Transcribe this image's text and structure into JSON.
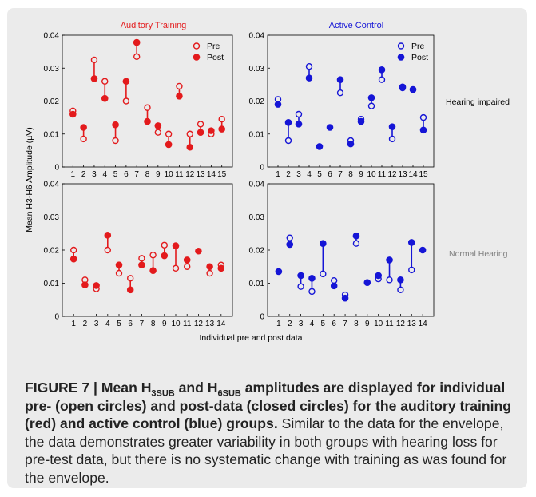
{
  "figure": {
    "ylabel": "Mean H3-H6 Amplitude (µV)",
    "xlabel": "Individual pre and post data",
    "titles": {
      "auditory": "Auditory Training",
      "active": "Active Control"
    },
    "row_labels": {
      "hi": "Hearing impaired",
      "nh": "Normal Hearing"
    },
    "legend": {
      "pre": "Pre",
      "post": "Post"
    },
    "colors": {
      "red": "#e31a1c",
      "blue": "#1515d6",
      "hi_label": "#000000",
      "nh_label": "#808080"
    }
  },
  "chart_data": [
    {
      "type": "scatter",
      "title": "Auditory Training",
      "row": "Hearing impaired",
      "color": "#e31a1c",
      "ylim": [
        0,
        0.04
      ],
      "yticks": [
        "0",
        "0.01",
        "0.02",
        "0.03",
        "0.04"
      ],
      "categories": [
        "1",
        "2",
        "3",
        "4",
        "5",
        "6",
        "7",
        "8",
        "9",
        "10",
        "11",
        "12",
        "13",
        "14",
        "15"
      ],
      "pre": [
        0.017,
        0.0085,
        0.0325,
        0.026,
        0.008,
        0.02,
        0.0335,
        0.018,
        0.0105,
        0.01,
        0.0245,
        0.01,
        0.013,
        0.01,
        0.0145
      ],
      "post": [
        0.016,
        0.012,
        0.0268,
        0.0208,
        0.0128,
        0.026,
        0.0378,
        0.0138,
        0.0125,
        0.0068,
        0.0215,
        0.006,
        0.0105,
        0.011,
        0.0115
      ],
      "legend": [
        "Pre",
        "Post"
      ]
    },
    {
      "type": "scatter",
      "title": "Active Control",
      "row": "Hearing impaired",
      "color": "#1515d6",
      "ylim": [
        0,
        0.04
      ],
      "yticks": [
        "0",
        "0.01",
        "0.02",
        "0.03",
        "0.04"
      ],
      "categories": [
        "1",
        "2",
        "3",
        "4",
        "5",
        "6",
        "7",
        "8",
        "9",
        "10",
        "11",
        "12",
        "13",
        "14",
        "15"
      ],
      "pre": [
        0.0205,
        0.008,
        0.016,
        0.0305,
        null,
        null,
        0.0225,
        0.008,
        0.0145,
        0.0185,
        0.0265,
        0.0085,
        0.024,
        null,
        0.015
      ],
      "post": [
        0.019,
        0.0135,
        0.013,
        0.027,
        0.0062,
        0.012,
        0.0265,
        0.007,
        0.0138,
        0.021,
        0.0295,
        0.0122,
        0.0243,
        0.0235,
        0.0112
      ],
      "legend": [
        "Pre",
        "Post"
      ]
    },
    {
      "type": "scatter",
      "title": "",
      "row": "Normal Hearing",
      "color": "#e31a1c",
      "ylim": [
        0,
        0.04
      ],
      "yticks": [
        "0",
        "0.01",
        "0.02",
        "0.03",
        "0.04"
      ],
      "categories": [
        "1",
        "2",
        "3",
        "4",
        "5",
        "6",
        "7",
        "8",
        "9",
        "10",
        "11",
        "12",
        "13",
        "14"
      ],
      "pre": [
        0.02,
        0.011,
        0.0083,
        0.02,
        0.013,
        0.0115,
        0.0175,
        0.0185,
        0.0215,
        0.0145,
        0.015,
        null,
        0.013,
        0.0155
      ],
      "post": [
        0.0173,
        0.0095,
        0.0093,
        0.0245,
        0.0155,
        0.008,
        0.0155,
        0.0138,
        0.0183,
        0.0213,
        0.017,
        0.0197,
        0.015,
        0.0145
      ]
    },
    {
      "type": "scatter",
      "title": "",
      "row": "Normal Hearing",
      "color": "#1515d6",
      "ylim": [
        0,
        0.04
      ],
      "yticks": [
        "0",
        "0.01",
        "0.02",
        "0.03",
        "0.04"
      ],
      "categories": [
        "1",
        "2",
        "3",
        "4",
        "5",
        "6",
        "7",
        "8",
        "9",
        "10",
        "11",
        "12",
        "13",
        "14"
      ],
      "pre": [
        null,
        0.0237,
        0.009,
        0.0075,
        0.0128,
        0.0108,
        0.0065,
        0.022,
        null,
        0.0113,
        0.011,
        0.008,
        0.014,
        null
      ],
      "post": [
        0.0135,
        0.0217,
        0.0123,
        0.0115,
        0.022,
        0.0092,
        0.0055,
        0.0243,
        0.0102,
        0.0123,
        0.017,
        0.011,
        0.0223,
        0.02
      ]
    }
  ],
  "caption": {
    "title_a": "FIGURE 7 | Mean H",
    "sub1": "3SUB",
    "title_b": " and H",
    "sub2": "6SUB",
    "title_c": " amplitudes are displayed for individual pre- (open circles) and post-data (closed circles) for the auditory training (red) and active control (blue) groups.",
    "body": " Similar to the data for the envelope, the data demonstrates greater variability in both groups with hearing loss for pre-test data, but there is no systematic change with training as was found for the envelope."
  }
}
